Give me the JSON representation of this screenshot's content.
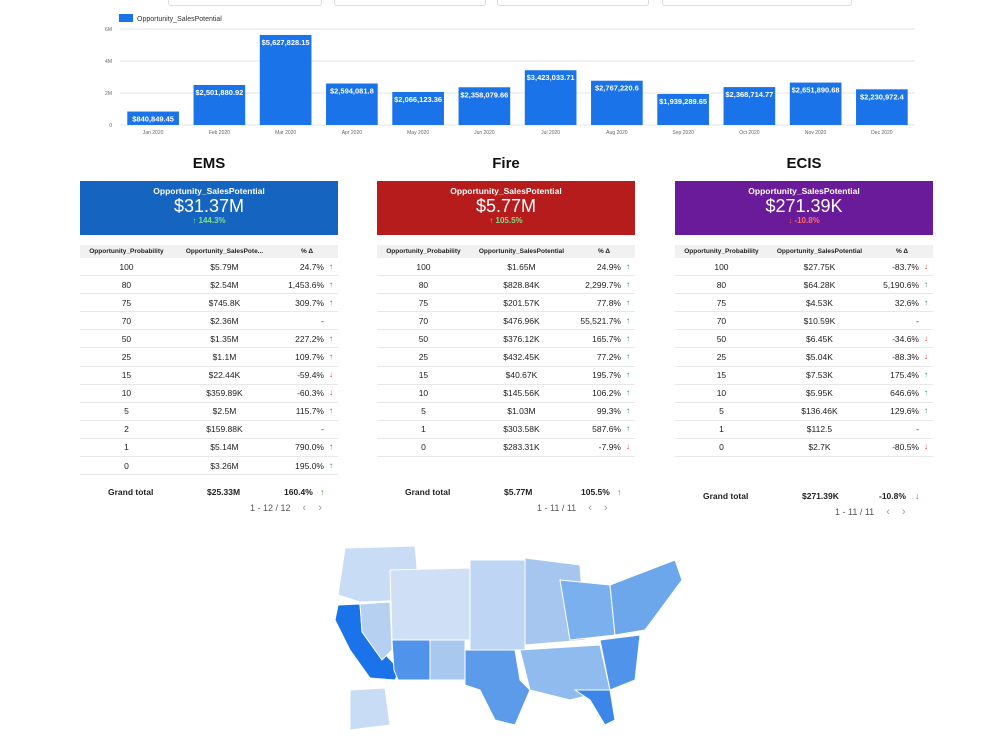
{
  "colors": {
    "bar": "#1a73e8",
    "ems": "#1565c0",
    "fire": "#b71c1c",
    "ecis": "#6a1b9a",
    "up": "#1e8e3e",
    "down": "#d93025"
  },
  "chart_data": {
    "type": "bar",
    "legend": "Opportunity_SalesPotential",
    "categories": [
      "Jan 2020",
      "Feb 2020",
      "Mar 2020",
      "Apr 2020",
      "May 2020",
      "Jun 2020",
      "Jul 2020",
      "Aug 2020",
      "Sep 2020",
      "Oct 2020",
      "Nov 2020",
      "Dec 2020"
    ],
    "values": [
      840849.45,
      2501880.92,
      5627828.15,
      2594081.8,
      2066123.36,
      2358079.66,
      3423033.71,
      2767220.6,
      1939289.65,
      2368714.77,
      2651890.68,
      2230972.4
    ],
    "labels": [
      "$840,849.45",
      "$2,501,880.92",
      "$5,627,828.15",
      "$2,594,081.8",
      "$2,066,123.36",
      "$2,358,079.66",
      "$3,423,033.71",
      "$2,767,220.6",
      "$1,939,289.65",
      "$2,368,714.77",
      "$2,651,890.68",
      "$2,230,972.4"
    ],
    "yticks": [
      "0",
      "2M",
      "4M",
      "6M"
    ],
    "ylim": [
      0,
      6000000
    ],
    "grid": true,
    "legend_position": "top-left"
  },
  "panels": [
    {
      "key": "ems",
      "title": "EMS",
      "metric_label": "Opportunity_SalesPotential",
      "metric_value": "$31.37M",
      "metric_delta": "144.3%",
      "metric_dir": "up",
      "headers": [
        "Opportunity_Probability",
        "Opportunity_SalesPote...",
        "% Δ"
      ],
      "rows": [
        {
          "p": "100",
          "v": "$5.79M",
          "d": "24.7%",
          "dir": "up"
        },
        {
          "p": "80",
          "v": "$2.54M",
          "d": "1,453.6%",
          "dir": "up"
        },
        {
          "p": "75",
          "v": "$745.8K",
          "d": "309.7%",
          "dir": "up"
        },
        {
          "p": "70",
          "v": "$2.36M",
          "d": "-",
          "dir": ""
        },
        {
          "p": "50",
          "v": "$1.35M",
          "d": "227.2%",
          "dir": "up"
        },
        {
          "p": "25",
          "v": "$1.1M",
          "d": "109.7%",
          "dir": "up"
        },
        {
          "p": "15",
          "v": "$22.44K",
          "d": "-59.4%",
          "dir": "down"
        },
        {
          "p": "10",
          "v": "$359.89K",
          "d": "-60.3%",
          "dir": "down"
        },
        {
          "p": "5",
          "v": "$2.5M",
          "d": "115.7%",
          "dir": "up"
        },
        {
          "p": "2",
          "v": "$159.88K",
          "d": "-",
          "dir": ""
        },
        {
          "p": "1",
          "v": "$5.14M",
          "d": "790.0%",
          "dir": "up"
        },
        {
          "p": "0",
          "v": "$3.26M",
          "d": "195.0%",
          "dir": "up"
        }
      ],
      "grand_label": "Grand total",
      "grand_value": "$25.33M",
      "grand_delta": "160.4%",
      "grand_dir": "up",
      "pager": "1 - 12 / 12"
    },
    {
      "key": "fire",
      "title": "Fire",
      "metric_label": "Opportunity_SalesPotential",
      "metric_value": "$5.77M",
      "metric_delta": "105.5%",
      "metric_dir": "up",
      "headers": [
        "Opportunity_Probability",
        "Opportunity_SalesPotential",
        "% Δ"
      ],
      "rows": [
        {
          "p": "100",
          "v": "$1.65M",
          "d": "24.9%",
          "dir": "up"
        },
        {
          "p": "80",
          "v": "$828.84K",
          "d": "2,299.7%",
          "dir": "up"
        },
        {
          "p": "75",
          "v": "$201.57K",
          "d": "77.8%",
          "dir": "up"
        },
        {
          "p": "70",
          "v": "$476.96K",
          "d": "55,521.7%",
          "dir": "up"
        },
        {
          "p": "50",
          "v": "$376.12K",
          "d": "165.7%",
          "dir": "up"
        },
        {
          "p": "25",
          "v": "$432.45K",
          "d": "77.2%",
          "dir": "up"
        },
        {
          "p": "15",
          "v": "$40.67K",
          "d": "195.7%",
          "dir": "up"
        },
        {
          "p": "10",
          "v": "$145.56K",
          "d": "106.2%",
          "dir": "up"
        },
        {
          "p": "5",
          "v": "$1.03M",
          "d": "99.3%",
          "dir": "up"
        },
        {
          "p": "1",
          "v": "$303.58K",
          "d": "587.6%",
          "dir": "up"
        },
        {
          "p": "0",
          "v": "$283.31K",
          "d": "-7.9%",
          "dir": "down"
        }
      ],
      "grand_label": "Grand total",
      "grand_value": "$5.77M",
      "grand_delta": "105.5%",
      "grand_dir": "up",
      "pager": "1 - 11 / 11"
    },
    {
      "key": "ecis",
      "title": "ECIS",
      "metric_label": "Opportunity_SalesPotential",
      "metric_value": "$271.39K",
      "metric_delta": "-10.8%",
      "metric_dir": "down",
      "headers": [
        "Opportunity_Probability",
        "Opportunity_SalesPotential",
        "% Δ"
      ],
      "rows": [
        {
          "p": "100",
          "v": "$27.75K",
          "d": "-83.7%",
          "dir": "down"
        },
        {
          "p": "80",
          "v": "$64.28K",
          "d": "5,190.6%",
          "dir": "up"
        },
        {
          "p": "75",
          "v": "$4.53K",
          "d": "32.6%",
          "dir": "up"
        },
        {
          "p": "70",
          "v": "$10.59K",
          "d": "-",
          "dir": ""
        },
        {
          "p": "50",
          "v": "$6.45K",
          "d": "-34.6%",
          "dir": "down"
        },
        {
          "p": "25",
          "v": "$5.04K",
          "d": "-88.3%",
          "dir": "down"
        },
        {
          "p": "15",
          "v": "$7.53K",
          "d": "175.4%",
          "dir": "up"
        },
        {
          "p": "10",
          "v": "$5.95K",
          "d": "646.6%",
          "dir": "up"
        },
        {
          "p": "5",
          "v": "$136.46K",
          "d": "129.6%",
          "dir": "up"
        },
        {
          "p": "1",
          "v": "$112.5",
          "d": "-",
          "dir": ""
        },
        {
          "p": "0",
          "v": "$2.7K",
          "d": "-80.5%",
          "dir": "down"
        }
      ],
      "grand_label": "Grand total",
      "grand_value": "$271.39K",
      "grand_delta": "-10.8%",
      "grand_dir": "down",
      "pager": "1 - 11 / 11"
    }
  ],
  "icons": {
    "up": "↑",
    "down": "↓",
    "prev": "‹",
    "next": "›"
  }
}
